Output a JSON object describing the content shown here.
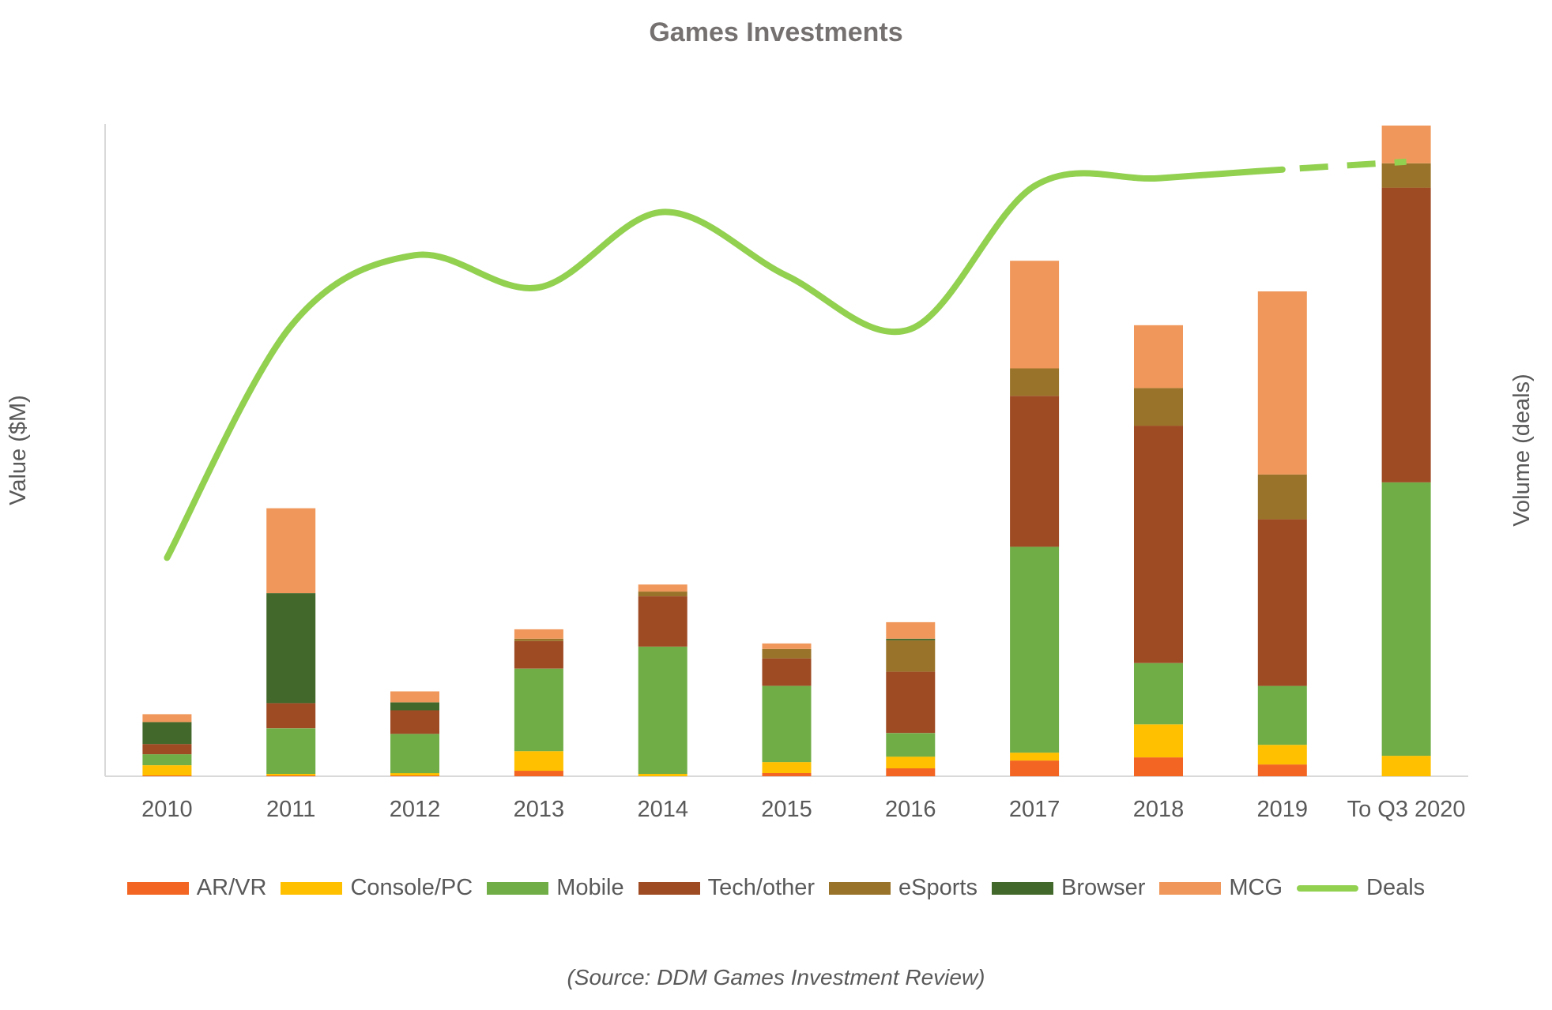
{
  "chart_data": {
    "type": "bar",
    "title": "Games Investments",
    "ylabel": "Value ($M)",
    "y2label": "Volume (deals)",
    "source": "(Source: DDM Games Investment Review)",
    "categories": [
      "2010",
      "2011",
      "2012",
      "2013",
      "2014",
      "2015",
      "2016",
      "2017",
      "2018",
      "2019",
      "To Q3 2020"
    ],
    "stacked": true,
    "ylim": [
      0,
      830
    ],
    "y2lim": [
      0,
      830
    ],
    "grid": false,
    "legend_position": "bottom",
    "series": [
      {
        "name": "AR/VR",
        "color": "#F26522",
        "values": [
          1,
          1,
          1,
          7,
          0,
          4,
          10,
          20,
          24,
          15,
          0
        ]
      },
      {
        "name": "Console/PC",
        "color": "#FFC000",
        "values": [
          13,
          2,
          3,
          25,
          3,
          14,
          15,
          10,
          42,
          25,
          26
        ]
      },
      {
        "name": "Mobile",
        "color": "#70AD47",
        "values": [
          14,
          58,
          50,
          105,
          162,
          97,
          30,
          262,
          78,
          75,
          348
        ]
      },
      {
        "name": "Tech/other",
        "color": "#9E4A23",
        "values": [
          13,
          32,
          30,
          35,
          64,
          35,
          78,
          192,
          302,
          212,
          375
        ]
      },
      {
        "name": "eSports",
        "color": "#997329",
        "values": [
          0,
          0,
          0,
          3,
          6,
          12,
          40,
          35,
          48,
          57,
          31
        ]
      },
      {
        "name": "Browser",
        "color": "#43682B",
        "values": [
          28,
          140,
          10,
          0,
          0,
          0,
          2,
          0,
          0,
          0,
          0
        ]
      },
      {
        "name": "MCG",
        "color": "#F0985B",
        "values": [
          10,
          108,
          14,
          12,
          9,
          7,
          21,
          137,
          80,
          233,
          48
        ]
      }
    ],
    "line": {
      "name": "Deals",
      "color": "#92D050",
      "values": [
        278,
        573,
        663,
        622,
        718,
        637,
        569,
        751,
        761,
        772,
        782
      ],
      "dashed_last_segment": true
    }
  }
}
